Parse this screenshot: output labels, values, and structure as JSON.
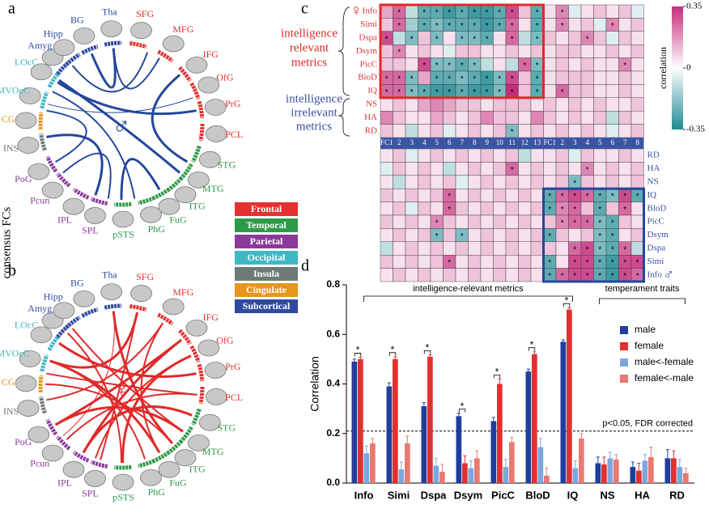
{
  "panel_labels": [
    "a",
    "b",
    "c",
    "d"
  ],
  "side_label": "consensus FCs",
  "male_symbol": "♂",
  "female_symbol": "♀",
  "regions": [
    {
      "label": "Tha",
      "lobe": "Subcortical"
    },
    {
      "label": "SFG",
      "lobe": "Frontal"
    },
    {
      "label": "MFG",
      "lobe": "Frontal"
    },
    {
      "label": "IFG",
      "lobe": "Frontal"
    },
    {
      "label": "OfG",
      "lobe": "Frontal"
    },
    {
      "label": "PrG",
      "lobe": "Frontal"
    },
    {
      "label": "PCL",
      "lobe": "Frontal"
    },
    {
      "label": "STG",
      "lobe": "Temporal"
    },
    {
      "label": "MTG",
      "lobe": "Temporal"
    },
    {
      "label": "ITG",
      "lobe": "Temporal"
    },
    {
      "label": "FuG",
      "lobe": "Temporal"
    },
    {
      "label": "PhG",
      "lobe": "Temporal"
    },
    {
      "label": "pSTS",
      "lobe": "Temporal"
    },
    {
      "label": "SPL",
      "lobe": "Parietal"
    },
    {
      "label": "IPL",
      "lobe": "Parietal"
    },
    {
      "label": "Pcun",
      "lobe": "Parietal"
    },
    {
      "label": "PoG",
      "lobe": "Parietal"
    },
    {
      "label": "INS",
      "lobe": "Insula"
    },
    {
      "label": "CG",
      "lobe": "Cingulate"
    },
    {
      "label": "MVOcC",
      "lobe": "Occipital"
    },
    {
      "label": "LOcC",
      "lobe": "Occipital"
    },
    {
      "label": "Amyg",
      "lobe": "Subcortical"
    },
    {
      "label": "Hipp",
      "lobe": "Subcortical"
    },
    {
      "label": "BG",
      "lobe": "Subcortical"
    }
  ],
  "lobes": [
    {
      "name": "Frontal",
      "color": "#e5302f"
    },
    {
      "name": "Temporal",
      "color": "#2e9a48"
    },
    {
      "name": "Parietal",
      "color": "#8b3a9c"
    },
    {
      "name": "Occipital",
      "color": "#3fb8c4"
    },
    {
      "name": "Insula",
      "color": "#6d7a75"
    },
    {
      "name": "Cingulate",
      "color": "#e8961c"
    },
    {
      "name": "Subcortical",
      "color": "#2e4aa0"
    }
  ],
  "male_link_color": "#23479b",
  "female_link_color": "#e02a2a",
  "heatmap": {
    "relevant_label": [
      "intelligence",
      "relevant",
      "metrics"
    ],
    "irrelevant_label": [
      "intelligence",
      "irrelevant",
      "metrics"
    ],
    "columns": [
      "FC1",
      "2",
      "3",
      "4",
      "5",
      "6",
      "7",
      "8",
      "9",
      "10",
      "11",
      "12",
      "13",
      "FC1",
      "2",
      "3",
      "4",
      "5",
      "6",
      "7",
      "8"
    ],
    "female_rows": [
      "Info",
      "Simi",
      "Dspa",
      "Dsym",
      "PicC",
      "BloD",
      "IQ",
      "NS",
      "HA",
      "RD"
    ],
    "male_rows": [
      "RD",
      "HA",
      "NS",
      "IQ",
      "BloD",
      "PicC",
      "Dsym",
      "Dspa",
      "Simi",
      "Info"
    ],
    "female_values": [
      [
        0.15,
        0.25,
        -0.1,
        -0.25,
        -0.25,
        -0.3,
        -0.25,
        -0.3,
        -0.3,
        -0.25,
        0.3,
        0.1,
        -0.25,
        0.05,
        0.2,
        -0.05,
        0.05,
        0.1,
        0.05,
        0.1,
        -0.05
      ],
      [
        0.1,
        0.25,
        -0.15,
        -0.25,
        -0.2,
        -0.25,
        -0.25,
        -0.25,
        -0.3,
        -0.25,
        0.25,
        0.05,
        -0.25,
        0.05,
        0.2,
        0.05,
        0.1,
        -0.05,
        0.2,
        0.05,
        0.1
      ],
      [
        0.3,
        -0.1,
        -0.2,
        0.1,
        -0.2,
        0.05,
        -0.2,
        -0.2,
        -0.25,
        0.05,
        0.25,
        -0.1,
        -0.2,
        0.1,
        0.05,
        0.1,
        0.2,
        0.1,
        -0.05,
        0.1,
        0.05
      ],
      [
        0.1,
        0.2,
        0.05,
        0.1,
        0.05,
        -0.05,
        0.1,
        0.1,
        0.05,
        0.05,
        0.1,
        0.05,
        0.1,
        0.05,
        0.1,
        0.1,
        0.05,
        0.05,
        0.1,
        0.05,
        0.1
      ],
      [
        0.1,
        0.1,
        0.05,
        0.3,
        -0.2,
        -0.2,
        -0.25,
        -0.2,
        -0.1,
        0.05,
        -0.1,
        0.25,
        -0.2,
        0.05,
        0.1,
        0.05,
        0.1,
        0.05,
        0.05,
        0.2,
        0.05
      ],
      [
        0.25,
        0.25,
        -0.2,
        0.15,
        -0.25,
        -0.25,
        -0.2,
        -0.25,
        -0.3,
        -0.2,
        0.3,
        0.1,
        -0.25,
        0.05,
        0.1,
        0.1,
        0.1,
        0.05,
        0.05,
        0.1,
        0.05
      ],
      [
        0.25,
        0.25,
        -0.2,
        -0.25,
        -0.3,
        -0.3,
        -0.25,
        -0.3,
        -0.3,
        -0.2,
        0.35,
        0.1,
        -0.25,
        0.05,
        0.25,
        0.1,
        0.1,
        0.05,
        0.05,
        0.1,
        0.05
      ],
      [
        0.05,
        0.1,
        0.05,
        0.15,
        0.2,
        0.15,
        0.1,
        0.1,
        0.05,
        0.1,
        0.1,
        0.1,
        0.05,
        0.1,
        0.05,
        0.1,
        0.05,
        0.1,
        0.05,
        0.05,
        0.1
      ],
      [
        0.2,
        0.1,
        0.05,
        0.05,
        0.15,
        0.1,
        0.05,
        0.1,
        0.2,
        0.1,
        0.1,
        0.05,
        0.2,
        0.1,
        0.05,
        0.1,
        0.05,
        0.1,
        -0.1,
        0.1,
        0.05
      ],
      [
        0.1,
        0.05,
        -0.1,
        0.05,
        0.1,
        -0.05,
        0.05,
        0.1,
        0.05,
        0.1,
        -0.2,
        0.05,
        0.1,
        0.05,
        0.1,
        0.05,
        0.1,
        0.05,
        -0.05,
        0.05,
        0.1
      ]
    ],
    "female_stars": [
      [
        null,
        "*",
        null,
        "*",
        "*",
        "*",
        "*",
        "*",
        "*",
        "*",
        "*",
        null,
        "*",
        null,
        "*",
        null,
        null,
        null,
        null,
        null,
        null
      ],
      [
        null,
        "*",
        null,
        "*",
        "*",
        "*",
        "*",
        "*",
        "*",
        "*",
        "*",
        null,
        "*",
        null,
        "*",
        null,
        null,
        null,
        "*",
        null,
        null
      ],
      [
        "*",
        null,
        "*",
        null,
        "*",
        null,
        "*",
        "*",
        "*",
        null,
        "*",
        null,
        "*",
        null,
        null,
        null,
        "*",
        null,
        null,
        null,
        null
      ],
      [
        null,
        "*",
        null,
        null,
        null,
        null,
        null,
        null,
        null,
        null,
        null,
        null,
        null,
        null,
        null,
        null,
        null,
        null,
        null,
        null,
        null
      ],
      [
        null,
        null,
        null,
        "*",
        "*",
        "*",
        "*",
        "*",
        null,
        null,
        null,
        "*",
        "*",
        null,
        null,
        null,
        null,
        null,
        null,
        "*",
        null
      ],
      [
        "*",
        "*",
        "*",
        null,
        "*",
        "*",
        "*",
        "*",
        "*",
        "*",
        "*",
        null,
        "*",
        null,
        null,
        null,
        null,
        null,
        null,
        null,
        null
      ],
      [
        "*",
        "*",
        "*",
        "*",
        "*",
        "*",
        "*",
        "*",
        "*",
        "*",
        "*",
        null,
        "*",
        null,
        "*",
        null,
        null,
        null,
        null,
        null,
        null
      ],
      [
        null,
        null,
        null,
        null,
        null,
        null,
        null,
        null,
        null,
        null,
        null,
        null,
        null,
        null,
        null,
        null,
        null,
        null,
        null,
        null,
        null
      ],
      [
        null,
        null,
        null,
        null,
        null,
        null,
        null,
        null,
        null,
        null,
        null,
        null,
        null,
        null,
        null,
        null,
        null,
        null,
        null,
        null,
        null
      ],
      [
        null,
        null,
        null,
        null,
        null,
        null,
        null,
        null,
        null,
        null,
        "*",
        null,
        null,
        null,
        null,
        null,
        null,
        null,
        null,
        null,
        null
      ]
    ],
    "male_values": [
      [
        0.05,
        0.1,
        -0.05,
        0.05,
        0.1,
        0.05,
        0.1,
        0.05,
        0.1,
        0.05,
        0.1,
        -0.1,
        0.05,
        0.05,
        0.1,
        -0.05,
        0.1,
        0.05,
        0.05,
        0.1,
        0.05
      ],
      [
        -0.05,
        0.1,
        0.05,
        0.1,
        0.05,
        -0.1,
        0.05,
        0.1,
        0.05,
        0.1,
        0.25,
        0.05,
        0.1,
        0.05,
        0.1,
        0.05,
        0.2,
        0.05,
        0.1,
        0.05,
        0.1
      ],
      [
        0.05,
        -0.1,
        0.05,
        0.1,
        0.05,
        0.1,
        -0.05,
        0.05,
        0.1,
        0.05,
        0.1,
        0.05,
        0.1,
        0.05,
        0.1,
        -0.2,
        0.1,
        0.05,
        0.1,
        0.05,
        0.1
      ],
      [
        0.1,
        0.05,
        0.1,
        0.05,
        0.1,
        0.25,
        0.05,
        0.1,
        0.05,
        0.1,
        0.05,
        0.1,
        0.05,
        -0.25,
        0.25,
        0.3,
        0.25,
        -0.25,
        -0.2,
        0.3,
        -0.25
      ],
      [
        0.05,
        0.1,
        -0.05,
        0.1,
        0.05,
        0.25,
        0.1,
        0.05,
        0.1,
        0.05,
        0.1,
        0.05,
        0.1,
        -0.25,
        0.2,
        0.25,
        0.1,
        -0.25,
        0.1,
        0.25,
        0.05
      ],
      [
        0.1,
        0.05,
        0.1,
        0.05,
        0.2,
        0.1,
        0.05,
        0.1,
        0.05,
        0.1,
        0.05,
        0.1,
        0.05,
        0.1,
        0.2,
        0.25,
        0.25,
        -0.2,
        -0.25,
        0.1,
        0.05
      ],
      [
        0.05,
        0.1,
        0.05,
        0.1,
        -0.2,
        0.1,
        -0.2,
        0.05,
        0.1,
        0.05,
        0.1,
        0.05,
        0.1,
        -0.25,
        0.1,
        0.05,
        0.1,
        -0.2,
        -0.25,
        0.05,
        0.1
      ],
      [
        -0.1,
        0.05,
        0.1,
        0.05,
        0.1,
        0.05,
        0.1,
        0.05,
        0.1,
        0.05,
        0.1,
        0.05,
        0.1,
        0.1,
        0.05,
        0.25,
        0.3,
        -0.2,
        -0.25,
        0.25,
        -0.1
      ],
      [
        0.1,
        0.05,
        0.1,
        0.05,
        0.1,
        0.25,
        0.05,
        0.1,
        0.05,
        0.1,
        0.05,
        0.1,
        0.05,
        -0.25,
        0.05,
        0.3,
        0.3,
        -0.25,
        -0.3,
        0.3,
        0.3
      ],
      [
        0.05,
        0.1,
        0.05,
        0.1,
        0.05,
        0.1,
        0.05,
        0.1,
        0.05,
        0.1,
        0.05,
        0.1,
        0.05,
        -0.25,
        0.25,
        0.3,
        0.3,
        -0.25,
        -0.3,
        0.3,
        0.25
      ]
    ],
    "male_stars": [
      [
        null,
        null,
        null,
        null,
        null,
        null,
        null,
        null,
        null,
        null,
        null,
        null,
        null,
        null,
        null,
        null,
        null,
        null,
        null,
        null,
        null
      ],
      [
        null,
        null,
        null,
        null,
        null,
        null,
        null,
        null,
        null,
        null,
        "*",
        null,
        null,
        null,
        null,
        null,
        "*",
        null,
        null,
        null,
        null
      ],
      [
        null,
        null,
        null,
        null,
        null,
        null,
        null,
        null,
        null,
        null,
        null,
        null,
        null,
        null,
        null,
        "*",
        null,
        null,
        null,
        null,
        null
      ],
      [
        null,
        null,
        null,
        null,
        null,
        "*",
        null,
        null,
        null,
        null,
        null,
        null,
        null,
        "*",
        "*",
        "*",
        "*",
        "*",
        "*",
        "*",
        "*"
      ],
      [
        null,
        null,
        null,
        null,
        null,
        "*",
        null,
        null,
        null,
        null,
        null,
        null,
        null,
        "*",
        "*",
        "*",
        null,
        "*",
        null,
        "*",
        null
      ],
      [
        null,
        null,
        null,
        null,
        "*",
        null,
        null,
        null,
        null,
        null,
        null,
        null,
        null,
        null,
        "*",
        "*",
        "*",
        "*",
        "*",
        null,
        null
      ],
      [
        null,
        null,
        null,
        null,
        "*",
        null,
        "*",
        null,
        null,
        null,
        null,
        null,
        null,
        "*",
        null,
        null,
        null,
        "*",
        "*",
        null,
        null
      ],
      [
        null,
        null,
        null,
        null,
        null,
        null,
        null,
        null,
        null,
        null,
        null,
        null,
        null,
        null,
        null,
        "*",
        "*",
        "*",
        "*",
        "*",
        null
      ],
      [
        null,
        null,
        null,
        null,
        null,
        "*",
        null,
        null,
        null,
        null,
        null,
        null,
        null,
        "*",
        null,
        "*",
        "*",
        "*",
        "*",
        "*",
        "*"
      ],
      [
        null,
        null,
        null,
        null,
        null,
        null,
        null,
        null,
        null,
        null,
        null,
        null,
        null,
        "*",
        "*",
        "*",
        "*",
        "*",
        "*",
        "*",
        "*"
      ]
    ],
    "clim": [
      -0.35,
      0.35
    ],
    "colorbar_ticks": [
      0.35,
      0,
      -0.35
    ],
    "colorbar_label": "correlation",
    "colors": [
      "#1f8a93",
      "#ffffff",
      "#c62d7c"
    ]
  },
  "chart_data": {
    "type": "bar",
    "ylabel": "Correlation",
    "categories": [
      "Info",
      "Simi",
      "Dspa",
      "Dsym",
      "PicC",
      "BloD",
      "IQ",
      "NS",
      "HA",
      "RD"
    ],
    "series": [
      {
        "name": "male",
        "color": "#1f3e9c",
        "values": [
          0.49,
          0.39,
          0.31,
          0.27,
          0.25,
          0.45,
          0.57,
          0.08,
          0.065,
          0.1
        ],
        "errors": [
          0.01,
          0.015,
          0.015,
          0.012,
          0.015,
          0.01,
          0.008,
          0.025,
          0.02,
          0.035
        ]
      },
      {
        "name": "female",
        "color": "#e03030",
        "values": [
          0.5,
          0.5,
          0.51,
          0.08,
          0.4,
          0.52,
          0.7,
          0.075,
          0.05,
          0.1
        ],
        "errors": [
          0.008,
          0.01,
          0.008,
          0.03,
          0.02,
          0.01,
          0.008,
          0.03,
          0.03,
          0.03
        ]
      },
      {
        "name": "male<-female",
        "color": "#7ba7dd",
        "values": [
          0.12,
          0.055,
          0.07,
          0.06,
          0.065,
          0.145,
          0.06,
          0.1,
          0.09,
          0.065
        ],
        "errors": [
          0.03,
          0.03,
          0.03,
          0.03,
          0.03,
          0.035,
          0.03,
          0.025,
          0.025,
          0.03
        ]
      },
      {
        "name": "female<-male",
        "color": "#e87a72",
        "values": [
          0.16,
          0.16,
          0.045,
          0.1,
          0.165,
          0.03,
          0.18,
          0.095,
          0.105,
          0.04
        ],
        "errors": [
          0.02,
          0.03,
          0.03,
          0.03,
          0.02,
          0.03,
          0.02,
          0.02,
          0.04,
          0.02
        ]
      }
    ],
    "significance": [
      "*",
      "*",
      "*",
      "*",
      "*",
      "*",
      "*",
      null,
      null,
      null
    ],
    "threshold": 0.21,
    "threshold_label": "p<0.05, FDR corrected",
    "group_labels": [
      "intelligence-relevant metrics",
      "temperament traits"
    ],
    "ylim": [
      0,
      0.8
    ],
    "yticks": [
      {
        "value": 0,
        "label": "0.0"
      },
      0.2,
      0.4,
      0.6,
      0.8
    ],
    "legend": "upper right"
  }
}
